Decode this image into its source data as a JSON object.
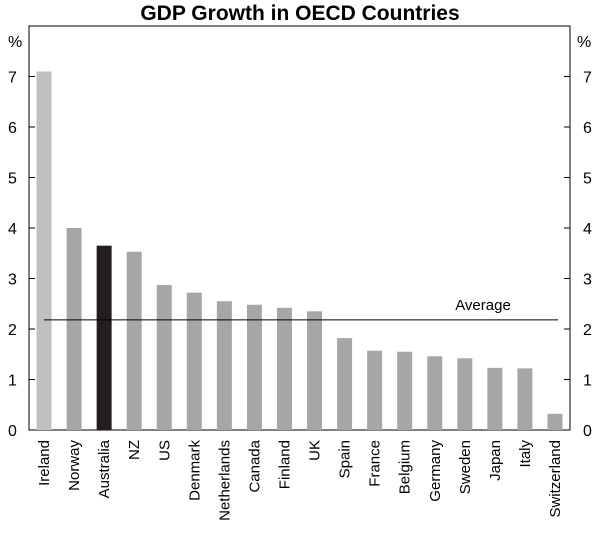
{
  "chart_data": {
    "type": "bar",
    "title": "GDP Growth in OECD Countries",
    "ylabel_left": "%",
    "ylabel_right": "%",
    "ylim": [
      0,
      8
    ],
    "yticks": [
      0,
      1,
      2,
      3,
      4,
      5,
      6,
      7
    ],
    "grid": false,
    "categories": [
      "Ireland",
      "Norway",
      "Australia",
      "NZ",
      "US",
      "Denmark",
      "Netherlands",
      "Canada",
      "Finland",
      "UK",
      "Spain",
      "France",
      "Belgium",
      "Germany",
      "Sweden",
      "Japan",
      "Italy",
      "Switzerland"
    ],
    "values": [
      7.1,
      4.0,
      3.65,
      3.53,
      2.87,
      2.72,
      2.55,
      2.48,
      2.42,
      2.35,
      1.82,
      1.57,
      1.55,
      1.46,
      1.42,
      1.23,
      1.22,
      0.32
    ],
    "bar_colors": [
      "#c0c0c0",
      "#a6a6a6",
      "#231f20",
      "#a6a6a6",
      "#a6a6a6",
      "#a6a6a6",
      "#a6a6a6",
      "#a6a6a6",
      "#a6a6a6",
      "#a6a6a6",
      "#a6a6a6",
      "#a6a6a6",
      "#a6a6a6",
      "#a6a6a6",
      "#a6a6a6",
      "#a6a6a6",
      "#a6a6a6",
      "#a6a6a6"
    ],
    "average": {
      "label": "Average",
      "value": 2.18
    }
  }
}
